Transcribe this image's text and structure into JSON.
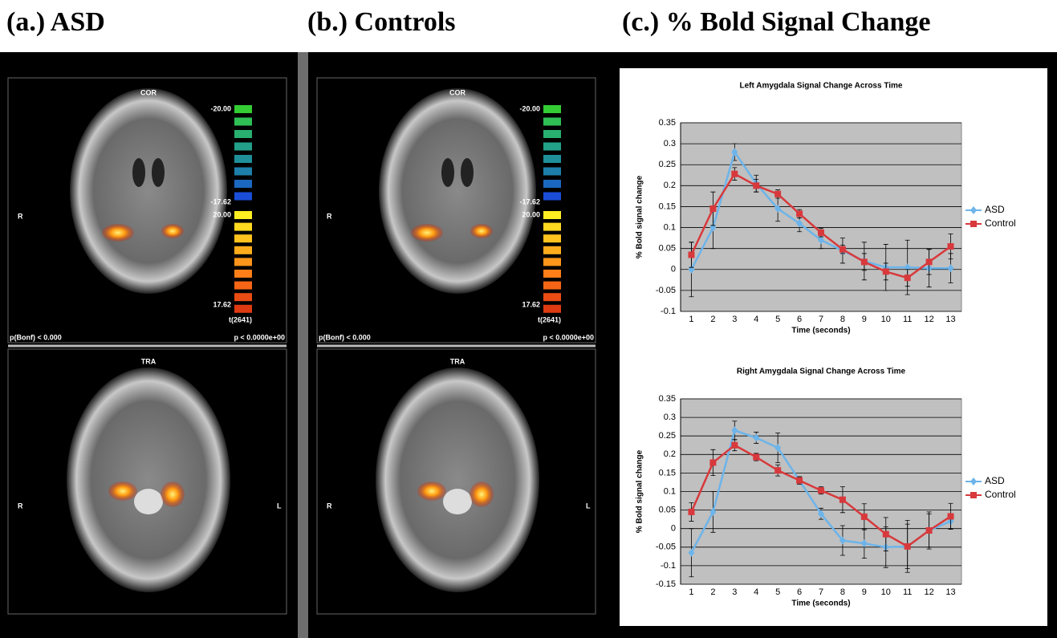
{
  "figure": {
    "panel_titles": [
      "(a.) ASD",
      "(b.) Controls",
      "(c.) % Bold Signal Change"
    ]
  },
  "brain_panels": [
    {
      "cor": "COR",
      "cor_side": "R",
      "colorbar_labels": [
        "-20.00",
        "-17.62",
        "20.00",
        "17.62"
      ],
      "colorbar_unit": "t(2641)",
      "p_left": "p(Bonf) < 0.000",
      "p_right": "p < 0.0000e+00",
      "tra": "TRA",
      "tra_right": "R",
      "tra_left": "L"
    },
    {
      "cor": "COR",
      "cor_side": "R",
      "colorbar_labels": [
        "-20.00",
        "-17.62",
        "20.00",
        "17.62"
      ],
      "colorbar_unit": "t(2641)",
      "p_left": "p(Bonf) < 0.000",
      "p_right": "p < 0.0000e+00",
      "tra": "TRA",
      "tra_right": "R",
      "tra_left": "L"
    }
  ],
  "chart_data": [
    {
      "type": "line",
      "title": "Left Amygdala Signal Change Across Time",
      "y_label": "% Bold signal change",
      "x_label": "Time (seconds)",
      "categories": [
        "1",
        "2",
        "3",
        "4",
        "5",
        "6",
        "7",
        "8",
        "9",
        "10",
        "11",
        "12",
        "13"
      ],
      "ylim": [
        -0.1,
        0.35
      ],
      "yticks": [
        -0.1,
        -0.05,
        0,
        0.05,
        0.1,
        0.15,
        0.2,
        0.25,
        0.3,
        0.35
      ],
      "grid": true,
      "legend": "right",
      "series": [
        {
          "name": "ASD",
          "color": "#6cb4ea",
          "marker": "diamond",
          "values": [
            0,
            0.1,
            0.28,
            0.205,
            0.145,
            0.11,
            0.07,
            0.045,
            0.02,
            0.005,
            0.005,
            0.003,
            0.003
          ],
          "errors": [
            0.065,
            0.05,
            0.02,
            0.02,
            0.03,
            0.02,
            0.02,
            0.03,
            0.045,
            0.055,
            0.065,
            0.045,
            0.035
          ]
        },
        {
          "name": "Control",
          "color": "#d8393c",
          "marker": "square",
          "values": [
            0.035,
            0.145,
            0.228,
            0.2,
            0.18,
            0.133,
            0.088,
            0.048,
            0.018,
            -0.005,
            -0.02,
            0.018,
            0.055
          ],
          "errors": [
            0.03,
            0.04,
            0.015,
            0.015,
            0.01,
            0.01,
            0.01,
            0.01,
            0.02,
            0.02,
            0.02,
            0.03,
            0.03
          ]
        }
      ]
    },
    {
      "type": "line",
      "title": "Right Amygdala Signal Change Across Time",
      "y_label": "% Bold signal change",
      "x_label": "Time (seconds)",
      "categories": [
        "1",
        "2",
        "3",
        "4",
        "5",
        "6",
        "7",
        "8",
        "9",
        "10",
        "11",
        "12",
        "13"
      ],
      "ylim": [
        -0.15,
        0.35
      ],
      "yticks": [
        -0.15,
        -0.1,
        -0.05,
        0,
        0.05,
        0.1,
        0.15,
        0.2,
        0.25,
        0.3,
        0.35
      ],
      "grid": true,
      "legend": "right",
      "series": [
        {
          "name": "ASD",
          "color": "#6cb4ea",
          "marker": "diamond",
          "values": [
            -0.065,
            0.045,
            0.265,
            0.245,
            0.218,
            0.13,
            0.04,
            -0.032,
            -0.04,
            -0.05,
            -0.048,
            -0.005,
            0.02
          ],
          "errors": [
            0.065,
            0.055,
            0.025,
            0.015,
            0.04,
            0.01,
            0.015,
            0.04,
            0.04,
            0.055,
            0.06,
            0.05,
            0.02
          ]
        },
        {
          "name": "Control",
          "color": "#d8393c",
          "marker": "square",
          "values": [
            0.045,
            0.178,
            0.225,
            0.193,
            0.157,
            0.13,
            0.103,
            0.078,
            0.032,
            -0.015,
            -0.048,
            -0.005,
            0.033
          ],
          "errors": [
            0.025,
            0.035,
            0.015,
            0.01,
            0.015,
            0.01,
            0.01,
            0.035,
            0.035,
            0.045,
            0.07,
            0.045,
            0.035
          ]
        }
      ]
    }
  ]
}
